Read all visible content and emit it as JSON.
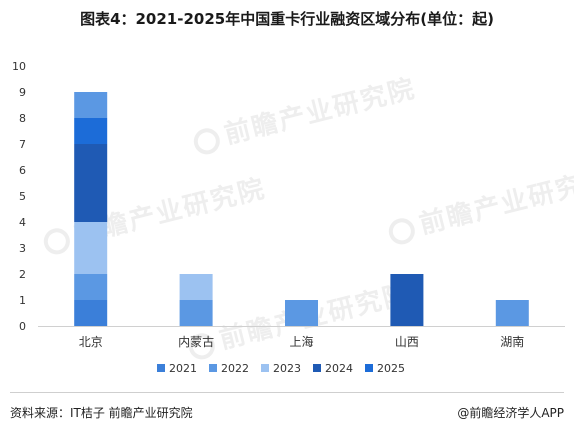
{
  "title": "图表4：2021-2025年中国重卡行业融资区域分布(单位：起)",
  "watermark": "前瞻产业研究院",
  "footer": {
    "source": "资料来源：IT桔子 前瞻产业研究院",
    "brand": "@前瞻经济学人APP"
  },
  "chart_data": {
    "type": "bar",
    "stacked": true,
    "title": "图表4：2021-2025年中国重卡行业融资区域分布(单位：起)",
    "xlabel": "",
    "ylabel": "",
    "ylim": [
      0,
      10
    ],
    "yticks": [
      "0",
      "1",
      "2",
      "3",
      "4",
      "5",
      "6",
      "7",
      "8",
      "9",
      "10"
    ],
    "grid": false,
    "legend_position": "bottom",
    "categories": [
      "北京",
      "内蒙古",
      "上海",
      "山西",
      "湖南"
    ],
    "series": [
      {
        "name": "2021",
        "color": "#3b7fd9",
        "values": [
          1,
          0,
          0,
          0,
          0
        ]
      },
      {
        "name": "2022",
        "color": "#5b98e3",
        "values": [
          1,
          1,
          1,
          0,
          1
        ]
      },
      {
        "name": "2023",
        "color": "#9cc2f1",
        "values": [
          2,
          1,
          0,
          0,
          0
        ]
      },
      {
        "name": "2024",
        "color": "#1f5ab4",
        "values": [
          3,
          0,
          0,
          2,
          0
        ]
      },
      {
        "name": "2025",
        "color": "#1c6cd8",
        "values": [
          1,
          0,
          0,
          0,
          0
        ]
      },
      {
        "name": "2022",
        "color": "#5b98e3",
        "values": [
          1,
          0,
          0,
          0,
          0
        ]
      }
    ],
    "legend": [
      {
        "name": "2021",
        "color": "#3b7fd9"
      },
      {
        "name": "2022",
        "color": "#5b98e3"
      },
      {
        "name": "2023",
        "color": "#9cc2f1"
      },
      {
        "name": "2024",
        "color": "#1f5ab4"
      },
      {
        "name": "2025",
        "color": "#1c6cd8"
      }
    ]
  }
}
